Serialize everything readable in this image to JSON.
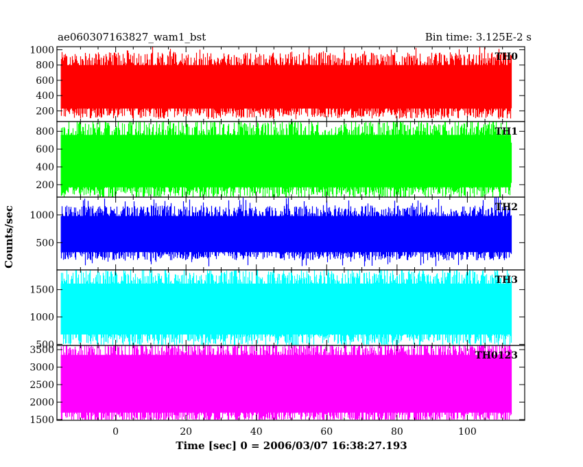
{
  "chart_data": {
    "type": "line",
    "title": "ae060307163827_wam1_bst",
    "subtitle": "Bin time: 3.125E-2 s",
    "xlabel": "Time [sec] 0 = 2006/03/07 16:38:27.193",
    "ylabel": "Counts/sec",
    "xlim": [
      -16.7,
      116.3
    ],
    "x_range": [
      -15.6,
      112.4
    ],
    "bin_time": 0.03125,
    "x_ticks": [
      0,
      20,
      40,
      60,
      80,
      100
    ],
    "grid": false,
    "legend": "none",
    "series": [
      {
        "name": "TH0",
        "color": "#ff0000",
        "ylim": [
          60,
          1040
        ],
        "y_ticks": [
          200,
          400,
          600,
          800,
          1000
        ],
        "typical_low": 230,
        "typical_high": 800,
        "min": 90,
        "max": 1040
      },
      {
        "name": "TH1",
        "color": "#00ff00",
        "ylim": [
          60,
          910
        ],
        "y_ticks": [
          200,
          400,
          600,
          800
        ],
        "typical_low": 170,
        "typical_high": 760,
        "min": 60,
        "max": 910
      },
      {
        "name": "TH2",
        "color": "#0000ff",
        "ylim": [
          10,
          1320
        ],
        "y_ticks": [
          500,
          1000
        ],
        "typical_low": 330,
        "typical_high": 980,
        "min": 70,
        "max": 1320
      },
      {
        "name": "TH3",
        "color": "#00ffff",
        "ylim": [
          480,
          1860
        ],
        "y_ticks": [
          500,
          1000,
          1500
        ],
        "typical_low": 680,
        "typical_high": 1610,
        "min": 490,
        "max": 1860
      },
      {
        "name": "TH0123",
        "color": "#ff00ff",
        "ylim": [
          1480,
          3620
        ],
        "y_ticks": [
          1500,
          2000,
          2500,
          3000,
          3500
        ],
        "typical_low": 1700,
        "typical_high": 3350,
        "min": 1500,
        "max": 3620
      }
    ]
  }
}
